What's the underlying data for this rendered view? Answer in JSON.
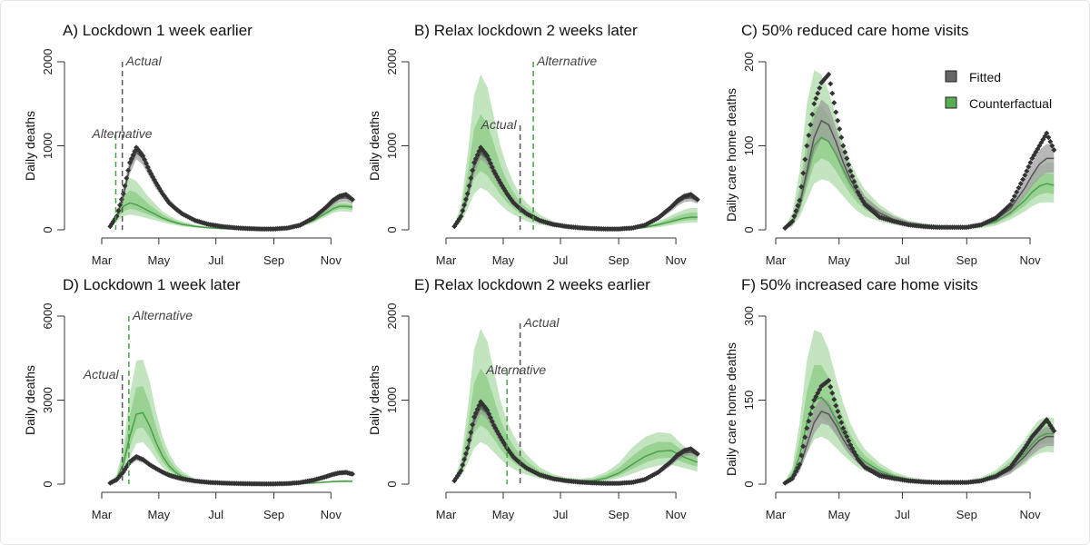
{
  "colors": {
    "fitted": "#555555",
    "fitted_band": "#9a9a9a",
    "counterfactual": "#4aa04a",
    "cf_band": "#8fd08a",
    "observed": "#333333"
  },
  "legend": {
    "items": [
      {
        "label": "Fitted",
        "color": "#666666"
      },
      {
        "label": "Counterfactual",
        "color": "#5aad4e"
      }
    ]
  },
  "chart_data": [
    {
      "type": "line",
      "title": "A) Lockdown 1 week earlier",
      "ylabel": "Daily deaths",
      "ylim": [
        0,
        2000
      ],
      "yticks": [
        "0",
        "1000",
        "2000"
      ],
      "xticks": [
        "Mar",
        "May",
        "Jul",
        "Sep",
        "Nov"
      ],
      "vlines": [
        {
          "label": "Actual",
          "date": "Mar 23",
          "series": "fitted"
        },
        {
          "label": "Alternative",
          "date": "Mar 16",
          "series": "counterfactual"
        }
      ],
      "series": "uk",
      "cf": {
        "median": [
          40,
          150,
          280,
          320,
          300,
          260,
          220,
          180,
          140,
          110,
          85,
          65,
          40,
          25,
          15,
          10,
          8,
          8,
          10,
          20,
          45,
          110,
          200,
          250,
          280,
          280,
          270
        ],
        "hi": [
          50,
          220,
          520,
          620,
          580,
          480,
          380,
          300,
          220,
          170,
          130,
          100,
          60,
          35,
          22,
          15,
          12,
          12,
          15,
          30,
          70,
          160,
          260,
          320,
          340,
          340,
          330
        ],
        "lo": [
          30,
          100,
          160,
          180,
          170,
          150,
          130,
          110,
          90,
          70,
          55,
          40,
          25,
          15,
          10,
          6,
          5,
          5,
          6,
          12,
          30,
          80,
          160,
          200,
          220,
          220,
          210
        ]
      }
    },
    {
      "type": "line",
      "title": "B) Relax lockdown 2 weeks later",
      "ylabel": "Daily deaths",
      "ylim": [
        0,
        2000
      ],
      "yticks": [
        "0",
        "1000",
        "2000"
      ],
      "xticks": [
        "Mar",
        "May",
        "Jul",
        "Sep",
        "Nov"
      ],
      "vlines": [
        {
          "label": "Actual",
          "date": "May 19",
          "series": "fitted"
        },
        {
          "label": "Alternative",
          "date": "Jun 2",
          "series": "counterfactual"
        }
      ],
      "series": "uk",
      "cf": {
        "median": [
          40,
          160,
          450,
          800,
          900,
          830,
          690,
          540,
          420,
          320,
          250,
          190,
          110,
          65,
          40,
          25,
          15,
          10,
          10,
          15,
          30,
          60,
          100,
          120,
          140,
          150,
          150
        ],
        "hi": [
          60,
          300,
          900,
          1600,
          1850,
          1700,
          1350,
          1000,
          750,
          560,
          420,
          320,
          180,
          100,
          60,
          40,
          25,
          18,
          18,
          25,
          50,
          100,
          170,
          210,
          240,
          260,
          260
        ],
        "lo": [
          25,
          90,
          250,
          430,
          500,
          460,
          380,
          300,
          230,
          180,
          140,
          100,
          60,
          35,
          22,
          12,
          8,
          5,
          5,
          8,
          15,
          30,
          55,
          70,
          80,
          85,
          85
        ]
      }
    },
    {
      "type": "line",
      "title": "C) 50% reduced care home visits",
      "ylabel": "Daily care home deaths",
      "ylim": [
        0,
        200
      ],
      "yticks": [
        "0",
        "100",
        "200"
      ],
      "xticks": [
        "Mar",
        "May",
        "Jul",
        "Sep",
        "Nov"
      ],
      "legend": "top-right",
      "series": "care",
      "cf": {
        "median": [
          2,
          8,
          28,
          65,
          100,
          110,
          105,
          90,
          72,
          55,
          42,
          32,
          20,
          12,
          7,
          5,
          3,
          3,
          3,
          5,
          10,
          20,
          35,
          45,
          52,
          55,
          53
        ],
        "hi": [
          4,
          20,
          70,
          150,
          190,
          185,
          165,
          135,
          105,
          80,
          62,
          48,
          30,
          18,
          11,
          8,
          6,
          5,
          5,
          8,
          15,
          30,
          50,
          65,
          75,
          80,
          80
        ],
        "lo": [
          1,
          4,
          15,
          35,
          55,
          60,
          58,
          50,
          40,
          30,
          22,
          16,
          10,
          6,
          3,
          2,
          1,
          1,
          1,
          2,
          5,
          12,
          22,
          28,
          32,
          33,
          32
        ]
      }
    },
    {
      "type": "line",
      "title": "D) Lockdown 1 week later",
      "ylabel": "Daily deaths",
      "ylim": [
        0,
        6000
      ],
      "yticks": [
        "0",
        "3000",
        "6000"
      ],
      "xticks": [
        "Mar",
        "May",
        "Jul",
        "Sep",
        "Nov"
      ],
      "vlines": [
        {
          "label": "Actual",
          "date": "Mar 23",
          "series": "fitted"
        },
        {
          "label": "Alternative",
          "date": "Mar 30",
          "series": "counterfactual"
        }
      ],
      "series": "uk",
      "cf": {
        "median": [
          40,
          200,
          700,
          1700,
          2500,
          2550,
          2100,
          1500,
          1000,
          650,
          420,
          270,
          110,
          45,
          20,
          10,
          6,
          5,
          6,
          10,
          20,
          40,
          70,
          90,
          100,
          105,
          100
        ],
        "hi": [
          60,
          350,
          1300,
          3200,
          4400,
          4450,
          3700,
          2600,
          1700,
          1100,
          700,
          450,
          180,
          70,
          30,
          15,
          10,
          8,
          10,
          15,
          30,
          60,
          100,
          130,
          140,
          150,
          140
        ],
        "lo": [
          25,
          120,
          400,
          950,
          1450,
          1500,
          1250,
          900,
          600,
          380,
          240,
          150,
          60,
          25,
          12,
          6,
          3,
          3,
          3,
          6,
          12,
          25,
          45,
          55,
          60,
          65,
          60
        ]
      }
    },
    {
      "type": "line",
      "title": "E) Relax lockdown 2 weeks earlier",
      "ylabel": "Daily deaths",
      "ylim": [
        0,
        2000
      ],
      "yticks": [
        "0",
        "1000",
        "2000"
      ],
      "xticks": [
        "Mar",
        "May",
        "Jul",
        "Sep",
        "Nov"
      ],
      "vlines": [
        {
          "label": "Actual",
          "date": "May 19",
          "series": "fitted"
        },
        {
          "label": "Alternative",
          "date": "May 5",
          "series": "counterfactual"
        }
      ],
      "series": "uk",
      "cf": {
        "median": [
          40,
          160,
          450,
          800,
          900,
          830,
          690,
          540,
          420,
          330,
          260,
          200,
          120,
          70,
          45,
          35,
          40,
          70,
          130,
          230,
          330,
          390,
          400,
          360,
          320,
          290,
          260
        ],
        "hi": [
          60,
          300,
          900,
          1600,
          1850,
          1700,
          1350,
          1000,
          750,
          580,
          450,
          350,
          200,
          120,
          80,
          65,
          80,
          140,
          250,
          430,
          560,
          620,
          600,
          520,
          450,
          400,
          350
        ],
        "lo": [
          25,
          90,
          250,
          430,
          500,
          460,
          380,
          300,
          230,
          180,
          140,
          110,
          65,
          38,
          25,
          18,
          20,
          35,
          70,
          120,
          180,
          220,
          230,
          210,
          190,
          170,
          150
        ]
      }
    },
    {
      "type": "line",
      "title": "F) 50% increased care home visits",
      "ylabel": "Daily care home deaths",
      "ylim": [
        0,
        300
      ],
      "yticks": [
        "0",
        "150",
        "300"
      ],
      "xticks": [
        "Mar",
        "May",
        "Jul",
        "Sep",
        "Nov"
      ],
      "series": "care",
      "cf": {
        "median": [
          3,
          15,
          50,
          110,
          150,
          155,
          140,
          115,
          90,
          68,
          52,
          40,
          24,
          14,
          8,
          5,
          4,
          4,
          4,
          8,
          16,
          32,
          55,
          72,
          85,
          90,
          90
        ],
        "hi": [
          5,
          30,
          110,
          220,
          275,
          270,
          240,
          190,
          145,
          108,
          82,
          62,
          38,
          22,
          13,
          9,
          7,
          6,
          7,
          12,
          25,
          48,
          80,
          100,
          115,
          120,
          118
        ],
        "lo": [
          1,
          8,
          25,
          55,
          80,
          85,
          78,
          65,
          52,
          40,
          30,
          23,
          14,
          8,
          4,
          3,
          2,
          2,
          2,
          4,
          9,
          20,
          35,
          48,
          55,
          58,
          56
        ]
      }
    }
  ],
  "dates": [
    "Mar 10",
    "Mar 17",
    "Mar 24",
    "Mar 31",
    "Apr 7",
    "Apr 14",
    "Apr 21",
    "Apr 28",
    "May 5",
    "May 12",
    "May 19",
    "May 26",
    "Jun 9",
    "Jun 23",
    "Jul 7",
    "Jul 21",
    "Aug 4",
    "Aug 18",
    "Sep 1",
    "Sep 15",
    "Sep 29",
    "Oct 13",
    "Oct 27",
    "Nov 3",
    "Nov 10",
    "Nov 17",
    "Nov 24"
  ],
  "fitted": {
    "uk": {
      "median": [
        40,
        150,
        400,
        750,
        920,
        850,
        700,
        550,
        430,
        330,
        260,
        200,
        120,
        70,
        45,
        25,
        15,
        10,
        10,
        20,
        50,
        130,
        250,
        320,
        370,
        380,
        350
      ],
      "hi": [
        50,
        190,
        470,
        860,
        1000,
        930,
        770,
        610,
        470,
        370,
        290,
        225,
        135,
        80,
        52,
        30,
        18,
        13,
        13,
        25,
        60,
        150,
        280,
        360,
        410,
        420,
        390
      ],
      "lo": [
        30,
        120,
        340,
        660,
        840,
        770,
        630,
        490,
        390,
        295,
        230,
        175,
        105,
        60,
        38,
        20,
        12,
        8,
        8,
        16,
        42,
        110,
        220,
        285,
        330,
        340,
        310
      ],
      "observed": [
        40,
        160,
        430,
        800,
        980,
        880,
        700,
        560,
        430,
        320,
        250,
        190,
        110,
        65,
        40,
        25,
        15,
        10,
        10,
        20,
        55,
        140,
        270,
        350,
        400,
        420,
        360
      ]
    },
    "care": {
      "median": [
        2,
        8,
        30,
        70,
        110,
        130,
        125,
        105,
        80,
        60,
        45,
        33,
        20,
        12,
        7,
        5,
        3,
        3,
        3,
        6,
        12,
        25,
        50,
        65,
        78,
        85,
        85
      ],
      "hi": [
        3,
        12,
        40,
        90,
        135,
        155,
        148,
        122,
        95,
        72,
        54,
        40,
        25,
        16,
        10,
        7,
        5,
        5,
        5,
        9,
        17,
        33,
        62,
        80,
        95,
        102,
        102
      ],
      "lo": [
        1,
        5,
        22,
        55,
        90,
        108,
        105,
        88,
        67,
        50,
        37,
        27,
        16,
        9,
        5,
        3,
        2,
        2,
        2,
        4,
        8,
        18,
        40,
        52,
        62,
        68,
        68
      ],
      "observed": [
        2,
        10,
        35,
        100,
        150,
        175,
        185,
        140,
        100,
        70,
        45,
        30,
        15,
        10,
        6,
        4,
        3,
        3,
        3,
        6,
        14,
        30,
        65,
        85,
        100,
        115,
        95
      ]
    }
  }
}
